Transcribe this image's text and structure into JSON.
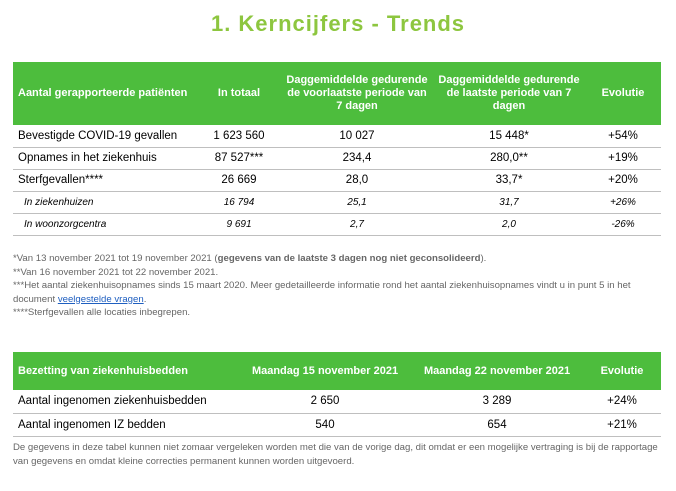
{
  "title": "1. Kerncijfers - Trends",
  "table1": {
    "headers": [
      "Aantal gerapporteerde patiënten",
      "In totaal",
      "Daggemiddelde gedurende de voorlaatste periode van 7 dagen",
      "Daggemiddelde gedurende de laatste periode van 7 dagen",
      "Evolutie"
    ],
    "rows": [
      [
        "Bevestigde COVID-19 gevallen",
        "1 623 560",
        "10 027",
        "15 448*",
        "+54%"
      ],
      [
        "Opnames in het ziekenhuis",
        "87 527***",
        "234,4",
        "280,0**",
        "+19%"
      ],
      [
        "Sterfgevallen****",
        "26 669",
        "28,0",
        "33,7*",
        "+20%"
      ],
      [
        "In ziekenhuizen",
        "16 794",
        "25,1",
        "31,7",
        "+26%"
      ],
      [
        "In woonzorgcentra",
        "9 691",
        "2,7",
        "2,0",
        "-26%"
      ]
    ]
  },
  "notes": {
    "line1_start": "*Van 13 november 2021 tot 19 november 2021 (",
    "line1_bold": "gegevens van de laatste 3 dagen nog niet geconsolideerd",
    "line1_end": ").",
    "line2": "**Van 16 november 2021 tot 22 november 2021.",
    "line3_start": "***Het aantal ziekenhuisopnames sinds 15 maart 2020. Meer gedetailleerde informatie rond het aantal ziekenhuisopnames vindt u in punt 5 in het document ",
    "line3_link": "veelgestelde vragen",
    "line3_end": ".",
    "line4": "****Sterfgevallen alle locaties inbegrepen."
  },
  "table2": {
    "headers": [
      "Bezetting van ziekenhuisbedden",
      "Maandag 15 november 2021",
      "Maandag 22 november 2021",
      "Evolutie"
    ],
    "rows": [
      [
        "Aantal ingenomen ziekenhuisbedden",
        "2 650",
        "3 289",
        "+24%"
      ],
      [
        "Aantal ingenomen IZ bedden",
        "540",
        "654",
        "+21%"
      ]
    ]
  },
  "footnote": "De gegevens in deze tabel kunnen niet zomaar vergeleken worden met die van de vorige dag, dit omdat er een mogelijke vertraging is bij de rapportage van gegevens en omdat kleine correcties permanent kunnen worden uitgevoerd.",
  "colors": {
    "title": "#8dc63f",
    "header_bg": "#4dbd3d",
    "link": "#1f5fc0"
  }
}
